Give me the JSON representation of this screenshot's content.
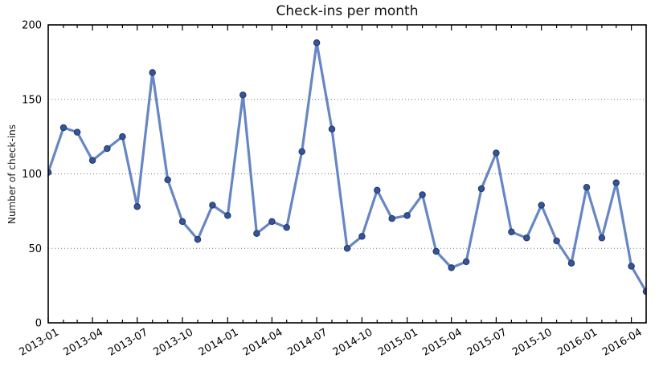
{
  "figure": {
    "title": "Check-ins per month",
    "background": "#ffffff"
  },
  "chart_data": {
    "type": "line",
    "title": "Check-ins per month",
    "xlabel": "",
    "ylabel": "Number of check-ins",
    "categories": [
      "2013-01",
      "2013-02",
      "2013-03",
      "2013-04",
      "2013-05",
      "2013-06",
      "2013-07",
      "2013-08",
      "2013-09",
      "2013-10",
      "2013-11",
      "2013-12",
      "2014-01",
      "2014-02",
      "2014-03",
      "2014-04",
      "2014-05",
      "2014-06",
      "2014-07",
      "2014-08",
      "2014-09",
      "2014-10",
      "2014-11",
      "2014-12",
      "2015-01",
      "2015-02",
      "2015-03",
      "2015-04",
      "2015-05",
      "2015-06",
      "2015-07",
      "2015-08",
      "2015-09",
      "2015-10",
      "2015-11",
      "2015-12",
      "2016-01",
      "2016-02",
      "2016-03",
      "2016-04",
      "2016-05"
    ],
    "values": [
      101,
      131,
      128,
      109,
      117,
      125,
      78,
      168,
      96,
      68,
      56,
      79,
      72,
      153,
      60,
      68,
      64,
      115,
      188,
      130,
      50,
      58,
      89,
      70,
      72,
      86,
      48,
      37,
      41,
      90,
      114,
      61,
      57,
      79,
      55,
      40,
      91,
      57,
      94,
      38,
      21
    ],
    "ylim": [
      0,
      200
    ],
    "yticks": [
      0,
      50,
      100,
      150,
      200
    ],
    "gridlines_y": [
      50,
      100,
      150
    ],
    "x_tick_labels": [
      "2013-01",
      "2013-04",
      "2013-07",
      "2013-10",
      "2014-01",
      "2014-04",
      "2014-07",
      "2014-10",
      "2015-01",
      "2015-04",
      "2015-07",
      "2015-10",
      "2016-01",
      "2016-04"
    ],
    "x_tick_label_rotation_deg": 30,
    "grid": "horizontal dotted",
    "legend": "none",
    "colors": {
      "line": "#5f80c1",
      "marker_face": "#36549c",
      "marker_edge": "#263a66",
      "axis": "#000000",
      "grid": "#777777",
      "text": "#000000"
    }
  }
}
